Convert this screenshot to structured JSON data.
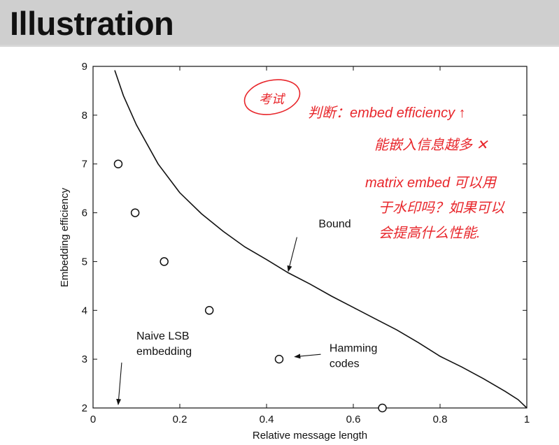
{
  "slide": {
    "title": "Illustration"
  },
  "chart_data": {
    "type": "scatter",
    "xlabel": "Relative message length",
    "ylabel": "Embedding efficiency",
    "xlim": [
      0,
      1
    ],
    "ylim": [
      2,
      9
    ],
    "xticks": [
      0,
      0.2,
      0.4,
      0.6,
      0.8,
      1
    ],
    "xtick_labels": [
      "0",
      "0.2",
      "0.4",
      "0.6",
      "0.8",
      "1"
    ],
    "yticks": [
      2,
      3,
      4,
      5,
      6,
      7,
      8,
      9
    ],
    "ytick_labels": [
      "2",
      "3",
      "4",
      "5",
      "6",
      "7",
      "8",
      "9"
    ],
    "grid": false,
    "series": [
      {
        "name": "Hamming codes",
        "style": "open-circle",
        "points": [
          {
            "x": 0.058,
            "y": 7.0
          },
          {
            "x": 0.097,
            "y": 6.0
          },
          {
            "x": 0.164,
            "y": 5.0
          },
          {
            "x": 0.268,
            "y": 4.0
          },
          {
            "x": 0.429,
            "y": 3.0
          },
          {
            "x": 0.667,
            "y": 2.0
          }
        ]
      },
      {
        "name": "Bound",
        "style": "line",
        "points": [
          {
            "x": 0.05,
            "y": 8.92
          },
          {
            "x": 0.07,
            "y": 8.4
          },
          {
            "x": 0.1,
            "y": 7.8
          },
          {
            "x": 0.15,
            "y": 7.0
          },
          {
            "x": 0.2,
            "y": 6.41
          },
          {
            "x": 0.25,
            "y": 5.98
          },
          {
            "x": 0.3,
            "y": 5.62
          },
          {
            "x": 0.35,
            "y": 5.3
          },
          {
            "x": 0.4,
            "y": 5.04
          },
          {
            "x": 0.45,
            "y": 4.77
          },
          {
            "x": 0.5,
            "y": 4.54
          },
          {
            "x": 0.55,
            "y": 4.29
          },
          {
            "x": 0.6,
            "y": 4.06
          },
          {
            "x": 0.65,
            "y": 3.83
          },
          {
            "x": 0.7,
            "y": 3.6
          },
          {
            "x": 0.75,
            "y": 3.34
          },
          {
            "x": 0.8,
            "y": 3.06
          },
          {
            "x": 0.85,
            "y": 2.84
          },
          {
            "x": 0.9,
            "y": 2.6
          },
          {
            "x": 0.95,
            "y": 2.34
          },
          {
            "x": 0.98,
            "y": 2.17
          },
          {
            "x": 1.0,
            "y": 2.0
          }
        ]
      }
    ],
    "annotations": [
      {
        "label": "Bound",
        "lines": [
          "Bound"
        ],
        "text_at": [
          0.52,
          5.7
        ],
        "arrow_from": [
          0.47,
          5.5
        ],
        "arrow_to": [
          0.45,
          4.8
        ]
      },
      {
        "label": "Hamming codes",
        "lines": [
          "Hamming",
          "codes"
        ],
        "text_at": [
          0.545,
          3.15
        ],
        "arrow_from": [
          0.525,
          3.1
        ],
        "arrow_to": [
          0.465,
          3.05
        ]
      },
      {
        "label": "Naive LSB embedding",
        "lines": [
          "Naive LSB",
          "embedding"
        ],
        "text_at": [
          0.1,
          3.4
        ],
        "arrow_from": [
          0.066,
          2.93
        ],
        "arrow_to": [
          0.058,
          2.07
        ]
      }
    ]
  },
  "handwritten_notes": {
    "color": "#e8262b",
    "lines": [
      "考试",
      "判断：embed efficiency ↑",
      "能嵌入信息越多 ✕",
      "matrix embed 可以用",
      "于水印吗？如果可以",
      "会提高什么性能."
    ]
  }
}
